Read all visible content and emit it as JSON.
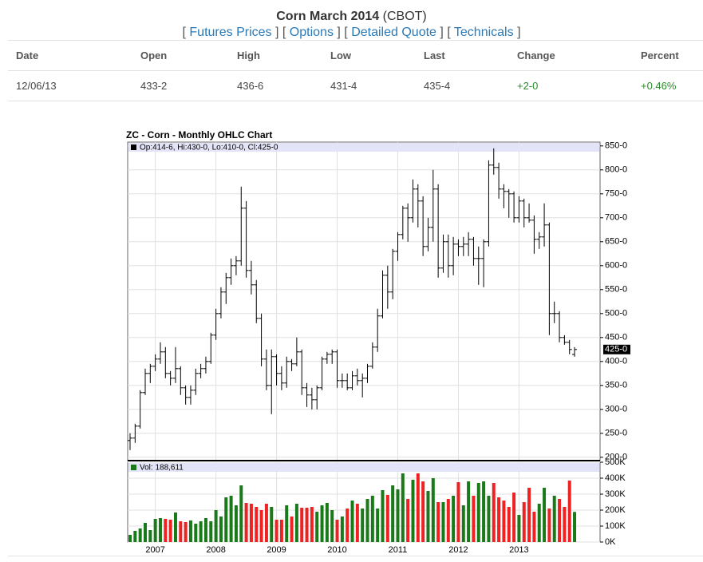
{
  "header": {
    "title": "Corn March 2014",
    "exchange": "(CBOT)"
  },
  "nav": {
    "open": "[",
    "close": "]",
    "links": [
      "Futures Prices",
      "Options",
      "Detailed Quote",
      "Technicals"
    ]
  },
  "table": {
    "columns": [
      "Date",
      "Open",
      "High",
      "Low",
      "Last",
      "Change",
      "Percent"
    ],
    "rows": [
      [
        "12/06/13",
        "433-2",
        "436-6",
        "431-4",
        "435-4",
        "+2-0",
        "+0.46%"
      ]
    ]
  },
  "chart_data": [
    {
      "type": "ohlc",
      "title": "ZC - Corn - Monthly OHLC Chart",
      "legend": "Op:414-6, Hi:430-0, Lo:410-0, Cl:425-0",
      "last_label": "425-0",
      "color": "#000000",
      "open": [
        235,
        240,
        265,
        335,
        375,
        390,
        405,
        420,
        375,
        365,
        385,
        345,
        325,
        340,
        375,
        385,
        400,
        455,
        500,
        545,
        575,
        600,
        610,
        720,
        590,
        560,
        490,
        405,
        350,
        410,
        375,
        355,
        400,
        395,
        420,
        345,
        330,
        320,
        345,
        405,
        415,
        420,
        360,
        360,
        345,
        370,
        360,
        365,
        390,
        430,
        495,
        580,
        545,
        630,
        665,
        720,
        700,
        760,
        735,
        640,
        680,
        760,
        595,
        650,
        600,
        645,
        640,
        645,
        655,
        615,
        615,
        650,
        810,
        805,
        760,
        755,
        750,
        700,
        735,
        700,
        695,
        655,
        660,
        685,
        500,
        500,
        450,
        440,
        414.75
      ],
      "high": [
        250,
        270,
        340,
        385,
        395,
        415,
        440,
        430,
        380,
        430,
        390,
        350,
        350,
        385,
        395,
        410,
        460,
        510,
        555,
        585,
        615,
        620,
        765,
        735,
        610,
        570,
        500,
        425,
        425,
        415,
        390,
        410,
        405,
        450,
        425,
        355,
        345,
        350,
        410,
        420,
        425,
        425,
        375,
        375,
        380,
        385,
        375,
        395,
        440,
        510,
        590,
        600,
        635,
        670,
        725,
        730,
        780,
        770,
        745,
        700,
        800,
        770,
        665,
        665,
        660,
        655,
        660,
        670,
        660,
        640,
        655,
        820,
        845,
        815,
        770,
        760,
        755,
        745,
        740,
        730,
        705,
        670,
        730,
        690,
        525,
        505,
        455,
        445,
        430
      ],
      "low": [
        215,
        230,
        260,
        330,
        355,
        380,
        395,
        365,
        350,
        355,
        330,
        310,
        310,
        330,
        365,
        375,
        395,
        445,
        490,
        520,
        560,
        580,
        600,
        575,
        540,
        480,
        390,
        340,
        290,
        350,
        340,
        345,
        380,
        390,
        330,
        305,
        300,
        300,
        340,
        395,
        395,
        345,
        345,
        340,
        340,
        350,
        325,
        355,
        385,
        420,
        490,
        510,
        530,
        610,
        655,
        650,
        690,
        680,
        620,
        630,
        650,
        575,
        585,
        575,
        580,
        620,
        620,
        620,
        600,
        560,
        555,
        640,
        790,
        740,
        720,
        700,
        690,
        690,
        680,
        690,
        625,
        635,
        640,
        455,
        480,
        440,
        435,
        415,
        410
      ],
      "close": [
        240,
        265,
        335,
        375,
        390,
        405,
        420,
        375,
        365,
        385,
        345,
        325,
        340,
        375,
        385,
        400,
        455,
        500,
        545,
        575,
        600,
        610,
        720,
        590,
        560,
        490,
        405,
        350,
        410,
        375,
        355,
        400,
        395,
        420,
        345,
        330,
        320,
        345,
        405,
        415,
        420,
        360,
        360,
        345,
        370,
        360,
        365,
        390,
        430,
        495,
        580,
        545,
        630,
        665,
        720,
        700,
        760,
        735,
        640,
        680,
        760,
        595,
        650,
        600,
        645,
        640,
        645,
        655,
        615,
        615,
        650,
        810,
        805,
        760,
        755,
        750,
        700,
        735,
        700,
        695,
        655,
        660,
        685,
        500,
        500,
        450,
        440,
        425,
        425
      ],
      "ylim": [
        193,
        858
      ],
      "yticks": [
        {
          "value": 200,
          "label": "200-0"
        },
        {
          "value": 250,
          "label": "250-0"
        },
        {
          "value": 300,
          "label": "300-0"
        },
        {
          "value": 350,
          "label": "350-0"
        },
        {
          "value": 400,
          "label": "400-0"
        },
        {
          "value": 450,
          "label": "450-0"
        },
        {
          "value": 500,
          "label": "500-0"
        },
        {
          "value": 550,
          "label": "550-0"
        },
        {
          "value": 600,
          "label": "600-0"
        },
        {
          "value": 650,
          "label": "650-0"
        },
        {
          "value": 700,
          "label": "700-0"
        },
        {
          "value": 750,
          "label": "750-0"
        },
        {
          "value": 800,
          "label": "800-0"
        },
        {
          "value": 850,
          "label": "850-0"
        }
      ],
      "grid": true
    },
    {
      "type": "volume",
      "legend": "Vol: 188,611",
      "up_color": "#1a7a1a",
      "down_color": "#ee2222",
      "categories": [
        null,
        null,
        null,
        null,
        null,
        "2007",
        null,
        null,
        null,
        null,
        null,
        null,
        null,
        null,
        null,
        null,
        null,
        "2008",
        null,
        null,
        null,
        null,
        null,
        null,
        null,
        null,
        null,
        null,
        null,
        "2009",
        null,
        null,
        null,
        null,
        null,
        null,
        null,
        null,
        null,
        null,
        null,
        "2010",
        null,
        null,
        null,
        null,
        null,
        null,
        null,
        null,
        null,
        null,
        null,
        "2011",
        null,
        null,
        null,
        null,
        null,
        null,
        null,
        null,
        null,
        null,
        null,
        "2012",
        null,
        null,
        null,
        null,
        null,
        null,
        null,
        null,
        null,
        null,
        null,
        "2013",
        null,
        null,
        null,
        null,
        null,
        null,
        null,
        null,
        null,
        null,
        null
      ],
      "values": [
        45000,
        70000,
        85000,
        120000,
        75000,
        145000,
        150000,
        145000,
        140000,
        185000,
        130000,
        125000,
        135000,
        115000,
        130000,
        150000,
        130000,
        200000,
        160000,
        280000,
        290000,
        230000,
        355000,
        245000,
        240000,
        220000,
        200000,
        240000,
        220000,
        140000,
        140000,
        230000,
        160000,
        240000,
        215000,
        215000,
        220000,
        190000,
        230000,
        245000,
        200000,
        140000,
        160000,
        210000,
        260000,
        240000,
        210000,
        270000,
        290000,
        210000,
        325000,
        295000,
        355000,
        330000,
        430000,
        270000,
        390000,
        430000,
        380000,
        320000,
        400000,
        250000,
        250000,
        270000,
        290000,
        375000,
        230000,
        380000,
        290000,
        370000,
        380000,
        290000,
        370000,
        280000,
        260000,
        220000,
        310000,
        170000,
        250000,
        340000,
        190000,
        240000,
        340000,
        210000,
        290000,
        270000,
        220000,
        385000,
        188611
      ],
      "ylim": [
        0,
        500000
      ],
      "yticks": [
        {
          "value": 0,
          "label": "0K"
        },
        {
          "value": 100000,
          "label": "100K"
        },
        {
          "value": 200000,
          "label": "200K"
        },
        {
          "value": 300000,
          "label": "300K"
        },
        {
          "value": 400000,
          "label": "400K"
        },
        {
          "value": 500000,
          "label": "500K"
        }
      ],
      "grid": true
    }
  ]
}
